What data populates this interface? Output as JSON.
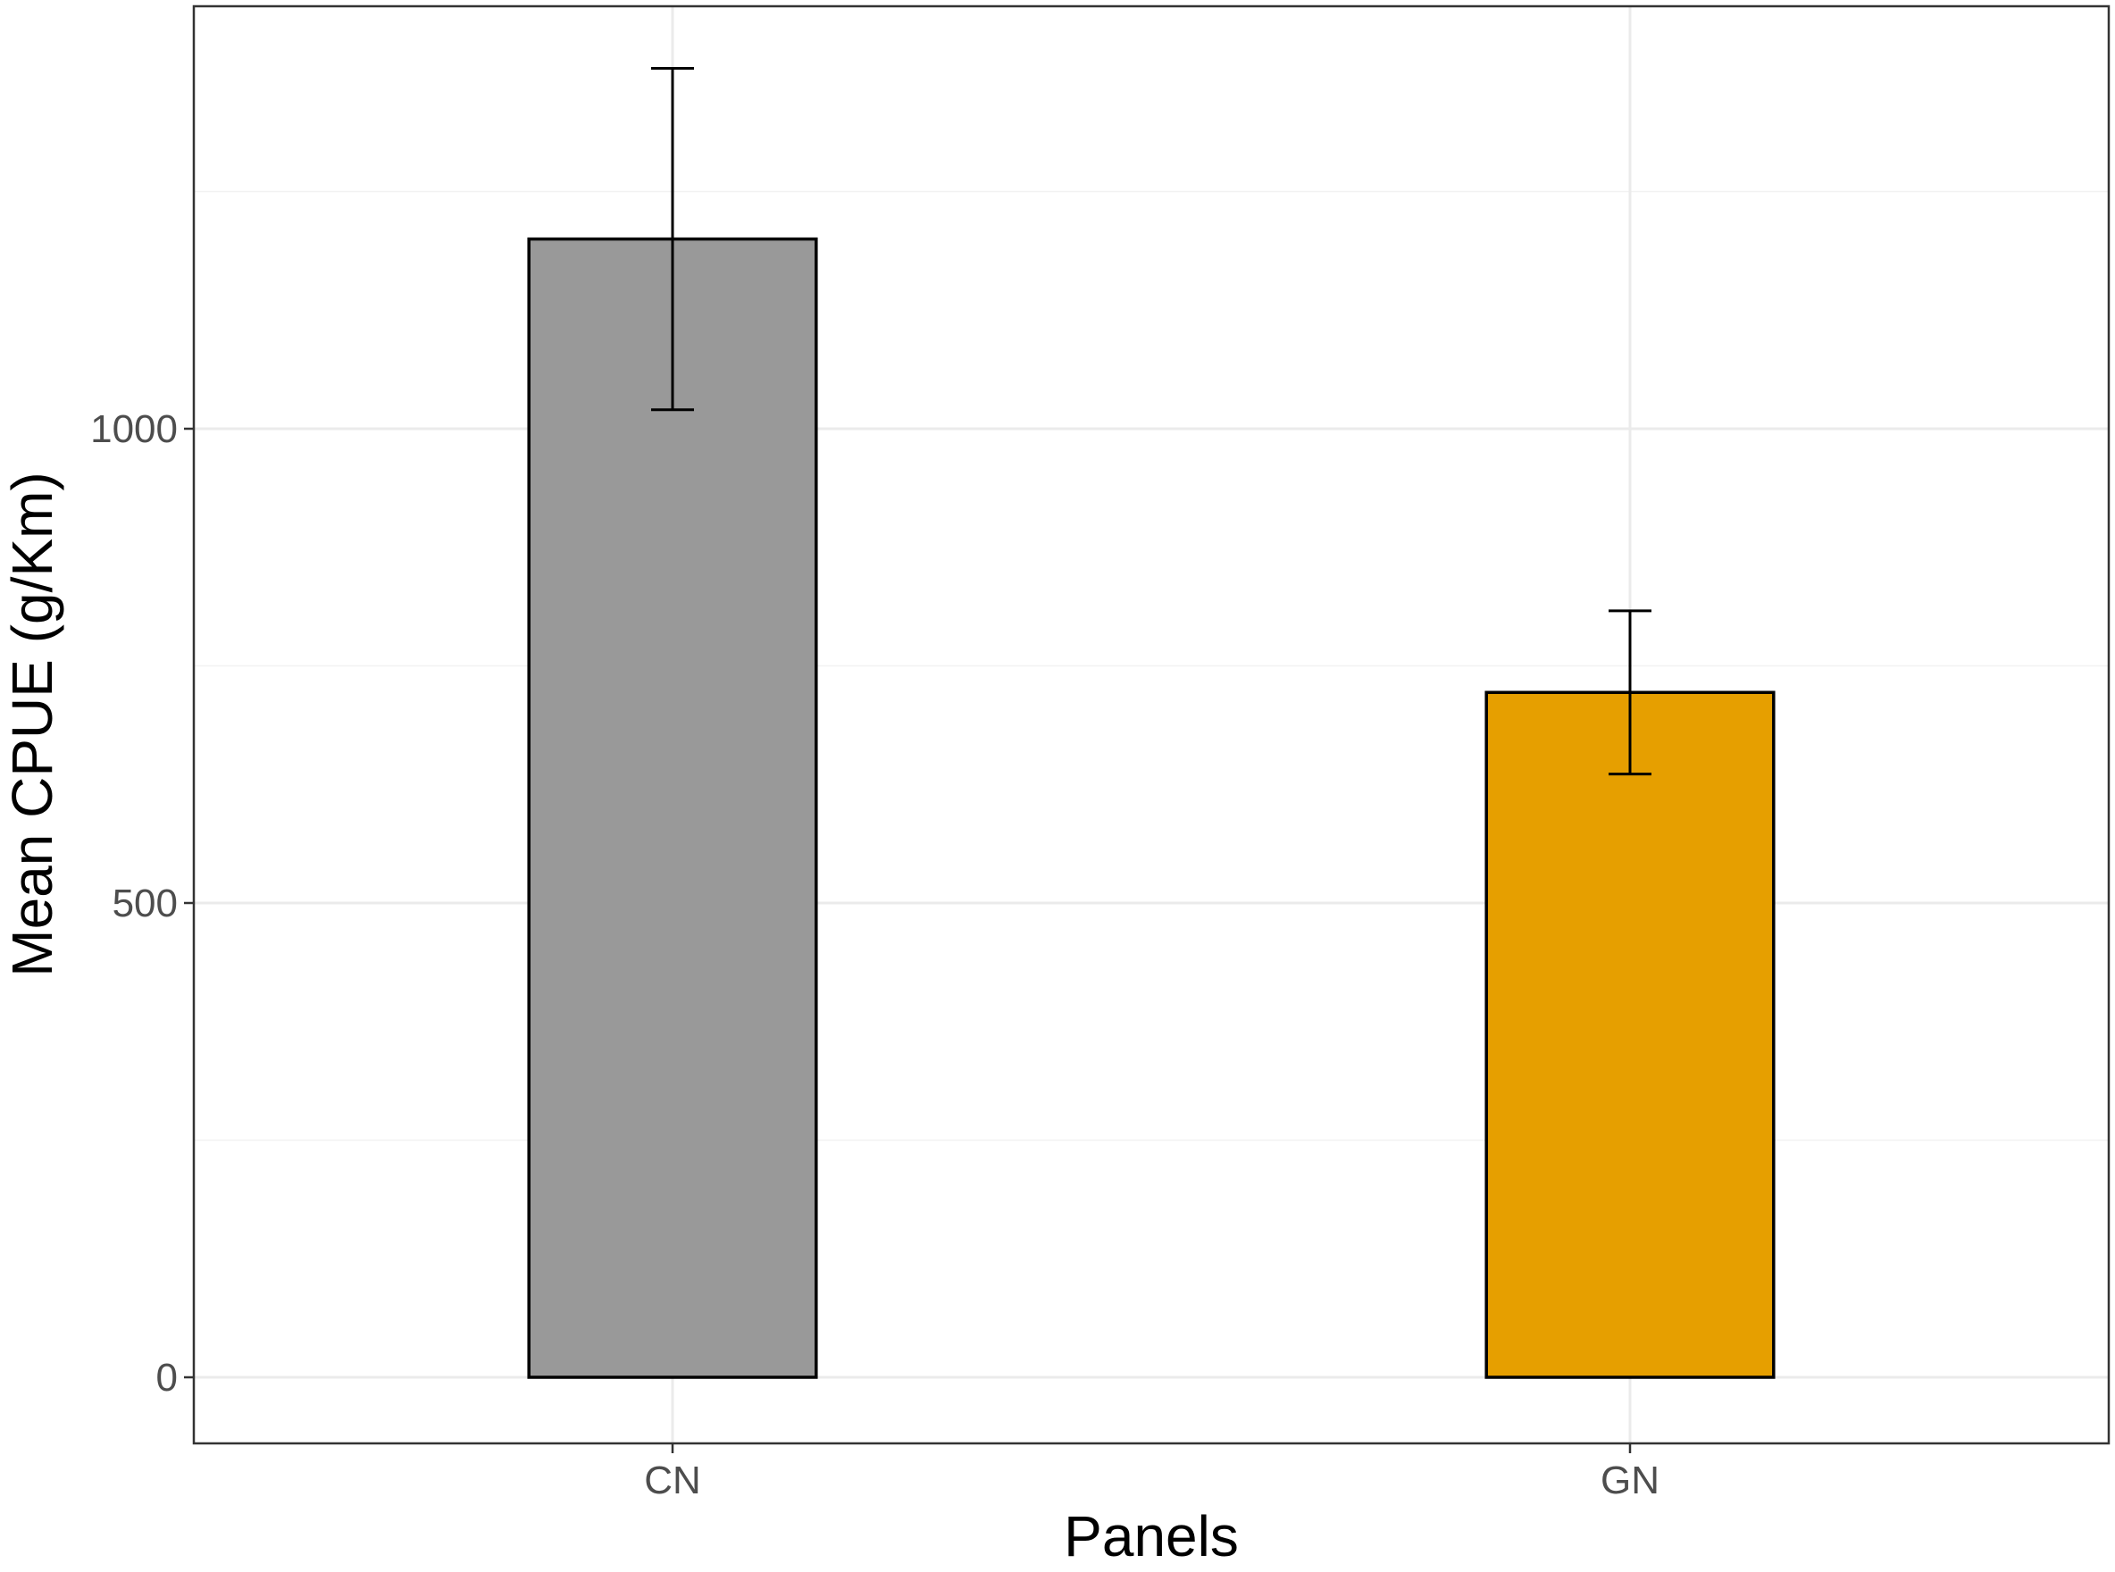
{
  "chart_data": {
    "type": "bar",
    "title": "",
    "xlabel": "Panels",
    "ylabel": "Mean CPUE (g/Km)",
    "categories": [
      "CN",
      "GN"
    ],
    "values": [
      1200,
      722
    ],
    "error_bars": {
      "lower": [
        1020,
        636
      ],
      "upper": [
        1380,
        808
      ]
    },
    "bar_colors": [
      "#999999",
      "#E69F00"
    ],
    "ylim": [
      -68,
      1448
    ],
    "yticks": [
      0,
      500,
      1000
    ],
    "ytick_labels": [
      "0",
      "500",
      "1000"
    ],
    "grid": true,
    "legend": "none"
  }
}
